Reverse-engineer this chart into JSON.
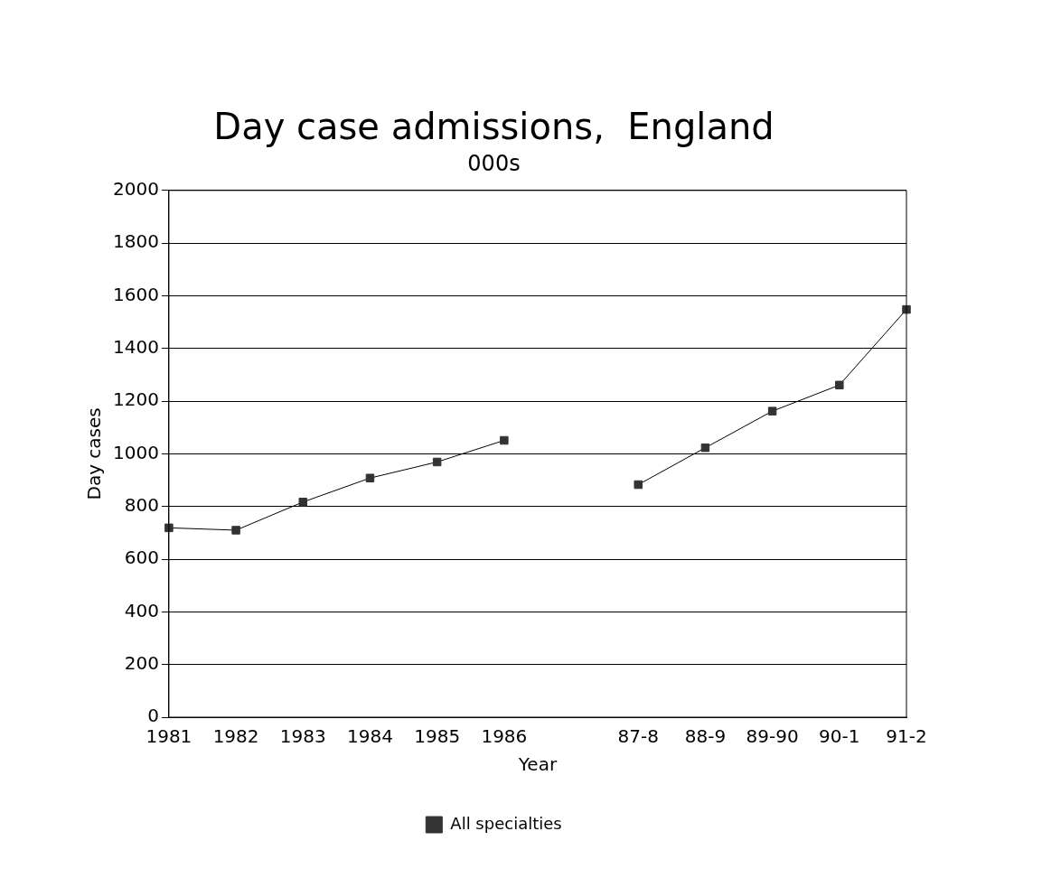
{
  "chart_data": {
    "type": "line",
    "title": "Day case admissions,  England",
    "subtitle": "000s",
    "xlabel": "Year",
    "ylabel": "Day cases",
    "categories": [
      "1981",
      "1982",
      "1983",
      "1984",
      "1985",
      "1986",
      null,
      "87-8",
      "88-9",
      "89-90",
      "90-1",
      "91-2"
    ],
    "series": [
      {
        "name": "All specialties",
        "color": "#333333",
        "values": [
          719,
          710,
          817,
          908,
          969,
          1051,
          null,
          883,
          1023,
          1162,
          1261,
          1548
        ]
      }
    ],
    "ylim": [
      0,
      2000
    ],
    "yticks": [
      0,
      200,
      400,
      600,
      800,
      1000,
      1200,
      1400,
      1600,
      1800,
      2000
    ],
    "grid": "y",
    "legend": "bottom",
    "marker": "square",
    "line_style": "solid"
  }
}
